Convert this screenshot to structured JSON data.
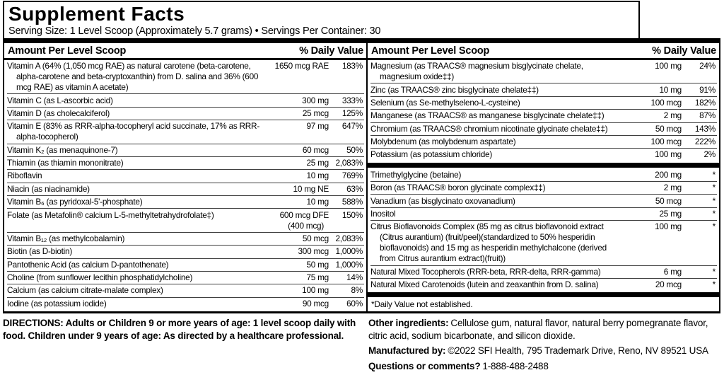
{
  "label": {
    "title": "Supplement Facts",
    "serving_line": "Serving Size: 1 Level Scoop (Approximately 5.7 grams) • Servings Per Container: 30",
    "column_header": {
      "amount": "Amount Per Level Scoop",
      "daily_value": "% Daily Value"
    },
    "left_rows": [
      {
        "name": "Vitamin A (64% (1,050 mcg RAE) as natural carotene (beta-carotene, alpha-carotene and beta-cryptoxanthin) from D. salina and 36% (600 mcg RAE) as vitamin A acetate)",
        "amount": "1650 mcg RAE",
        "dv": "183%"
      },
      {
        "name": "Vitamin C (as L-ascorbic acid)",
        "amount": "300 mg",
        "dv": "333%"
      },
      {
        "name": "Vitamin D (as cholecalciferol)",
        "amount": "25 mcg",
        "dv": "125%"
      },
      {
        "name": "Vitamin E (83% as RRR-alpha-tocopheryl acid succinate, 17% as RRR-alpha-tocopherol)",
        "amount": "97 mg",
        "dv": "647%"
      },
      {
        "name": "Vitamin K₂ (as menaquinone-7)",
        "amount": "60 mcg",
        "dv": "50%"
      },
      {
        "name": "Thiamin (as thiamin mononitrate)",
        "amount": "25 mg",
        "dv": "2,083%"
      },
      {
        "name": "Riboflavin",
        "amount": "10 mg",
        "dv": "769%"
      },
      {
        "name": "Niacin (as niacinamide)",
        "amount": "10 mg NE",
        "dv": "63%"
      },
      {
        "name": "Vitamin B₆ (as pyridoxal-5'-phosphate)",
        "amount": "10 mg",
        "dv": "588%"
      },
      {
        "name": "Folate (as Metafolin® calcium L-5-methyltetrahydrofolate‡)",
        "amount": "600 mcg DFE",
        "amount2": "(400 mcg)",
        "dv": "150%"
      },
      {
        "name": "Vitamin B₁₂ (as methylcobalamin)",
        "amount": "50 mcg",
        "dv": "2,083%"
      },
      {
        "name": "Biotin (as D-biotin)",
        "amount": "300 mcg",
        "dv": "1,000%"
      },
      {
        "name": "Pantothenic Acid (as calcium D-pantothenate)",
        "amount": "50 mg",
        "dv": "1,000%"
      },
      {
        "name": "Choline (from sunflower lecithin phosphatidylcholine)",
        "amount": "75 mg",
        "dv": "14%"
      },
      {
        "name": "Calcium (as calcium citrate-malate complex)",
        "amount": "100 mg",
        "dv": "8%"
      },
      {
        "name": "Iodine (as potassium iodide)",
        "amount": "90 mcg",
        "dv": "60%"
      }
    ],
    "right_rows_minerals": [
      {
        "name": "Magnesium (as TRAACS® magnesium bisglycinate chelate, magnesium oxide‡‡)",
        "amount": "100 mg",
        "dv": "24%"
      },
      {
        "name": "Zinc (as TRAACS® zinc bisglycinate chelate‡‡)",
        "amount": "10 mg",
        "dv": "91%"
      },
      {
        "name": "Selenium (as Se-methylseleno-L-cysteine)",
        "amount": "100 mcg",
        "dv": "182%"
      },
      {
        "name": "Manganese (as TRAACS® as manganese bisglycinate chelate‡‡)",
        "amount": "2 mg",
        "dv": "87%"
      },
      {
        "name": "Chromium (as TRAACS® chromium nicotinate glycinate chelate‡‡)",
        "amount": "50 mcg",
        "dv": "143%"
      },
      {
        "name": "Molybdenum (as molybdenum aspartate)",
        "amount": "100 mcg",
        "dv": "222%"
      },
      {
        "name": "Potassium (as potassium chloride)",
        "amount": "100 mg",
        "dv": "2%"
      }
    ],
    "right_rows_others": [
      {
        "name": "Trimethylglycine (betaine)",
        "amount": "200 mg",
        "dv": "*"
      },
      {
        "name": "Boron (as TRAACS® boron glycinate complex‡‡)",
        "amount": "2 mg",
        "dv": "*"
      },
      {
        "name": "Vanadium (as bisglycinato oxovanadium)",
        "amount": "50 mcg",
        "dv": "*"
      },
      {
        "name": "Inositol",
        "amount": "25 mg",
        "dv": "*"
      },
      {
        "name": "Citrus Bioflavonoids Complex (85 mg as citrus bioflavonoid extract (Citrus aurantium) (fruit/peel)(standardized to 50% hesperidin bioflavonoids) and 15 mg as hesperidin methylchalcone (derived from Citrus aurantium extract)(fruit))",
        "amount": "100 mg",
        "dv": "*"
      },
      {
        "name": "Natural Mixed Tocopherols (RRR-beta, RRR-delta, RRR-gamma)",
        "amount": "6 mg",
        "dv": "*"
      },
      {
        "name": "Natural Mixed Carotenoids (lutein and zeaxanthin from D. salina)",
        "amount": "20 mcg",
        "dv": "*"
      }
    ],
    "footnote": "*Daily Value not established."
  },
  "footer": {
    "directions": "DIRECTIONS: Adults or Children 9 or more years of age: 1 level scoop daily with food. Children under 9 years of age: As directed by a healthcare professional.",
    "other_ingredients_label": "Other ingredients:",
    "other_ingredients_text": "Cellulose gum, natural flavor, natural berry pomegranate flavor, citric acid, sodium bicarbonate, and silicon dioxide.",
    "manufactured_by_label": "Manufactured by:",
    "manufactured_by_text": "©2022 SFI Health, 795 Trademark Drive, Reno, NV 89521 USA",
    "questions_label": "Questions or comments?",
    "questions_text": "1-888-488-2488"
  },
  "colors": {
    "text": "#000000",
    "background": "#ffffff",
    "border": "#000000"
  }
}
